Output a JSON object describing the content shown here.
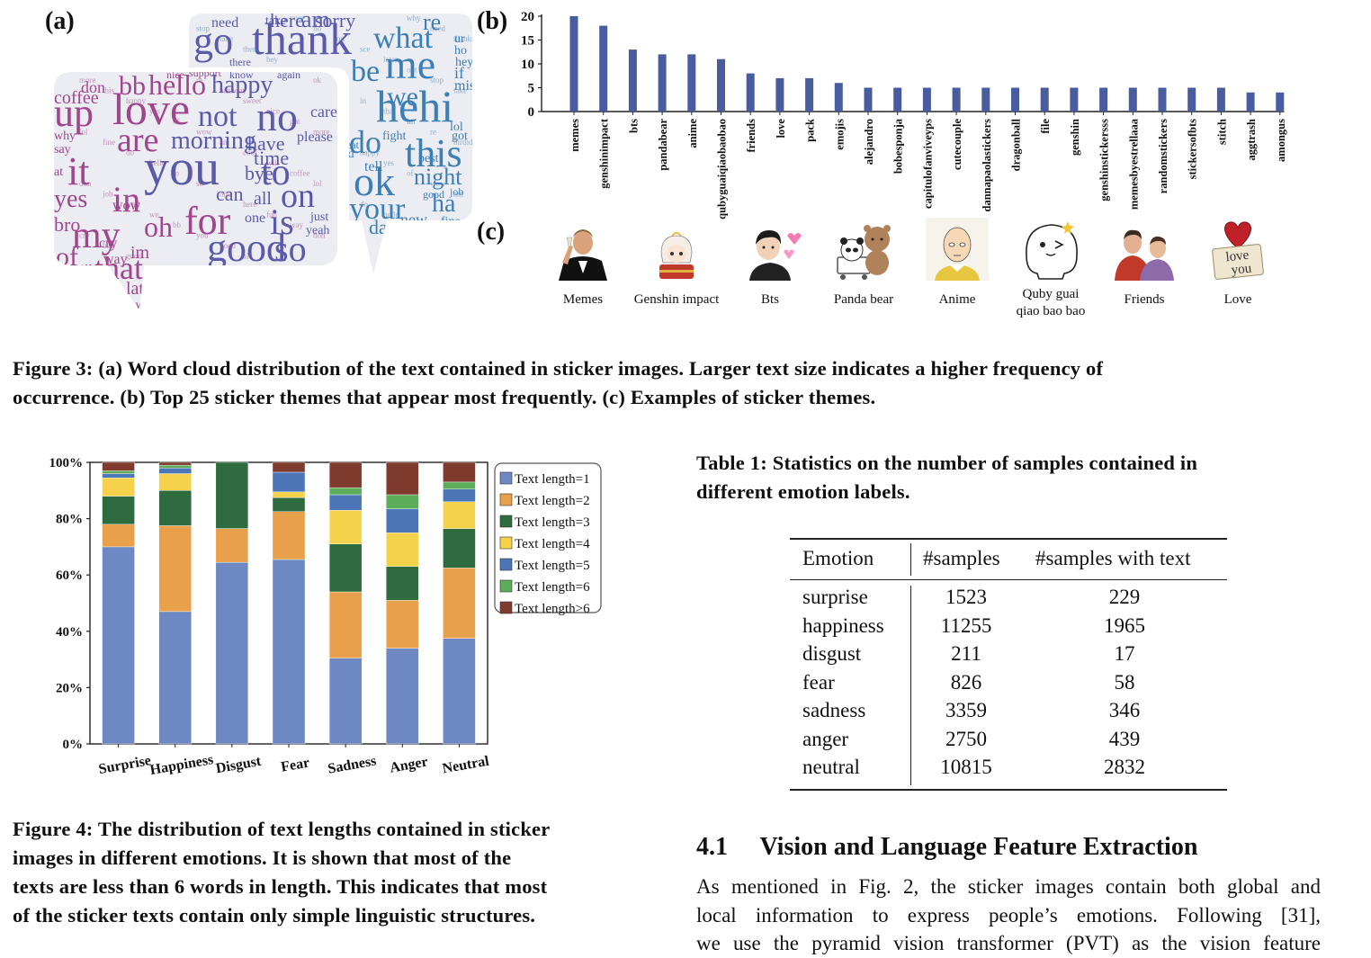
{
  "fig3": {
    "label_a": "(a)",
    "label_b": "(b)",
    "label_c": "(c)",
    "caption_line1": "Figure 3: (a) Word cloud distribution of the text contained in sticker images. Larger text size indicates a higher frequency of",
    "caption_line2": "occurrence. (b) Top 25 sticker themes that appear most frequently. (c) Examples of sticker themes."
  },
  "wordcloud": {
    "colors": {
      "purple": "#a0468c",
      "blue": "#3d7eb5",
      "indigo": "#5a5aa8",
      "background": "#ececf2"
    },
    "words": [
      "go",
      "thank",
      "what",
      "me",
      "hehi",
      "be",
      "we",
      "do",
      "this",
      "ok",
      "your",
      "night",
      "ha",
      "up",
      "love",
      "bb",
      "hello",
      "happy",
      "not",
      "no",
      "are",
      "morning",
      "have",
      "it",
      "you",
      "to",
      "yes",
      "in",
      "on",
      "for",
      "is",
      "my",
      "oh",
      "good",
      "so",
      "of",
      "that",
      "sce",
      "zzz",
      "bye",
      "time",
      "can",
      "all",
      "one",
      "wow",
      "im",
      "later",
      "like",
      "how",
      "day",
      "new",
      "sorry",
      "here",
      "am",
      "re",
      "out",
      "care",
      "please",
      "just",
      "yeah",
      "tell",
      "fun",
      "cool",
      "birthday",
      "stop",
      "why",
      "say",
      "at",
      "bro",
      "cry",
      "way",
      "will",
      "sweet",
      "take",
      "need",
      "support",
      "know",
      "again",
      "bad",
      "don",
      "coffee",
      "nice",
      "there",
      "thanks",
      "fight",
      "eat",
      "best",
      "good",
      "job",
      "lol",
      "got",
      "hey",
      "ho",
      "ur",
      "if",
      "miss",
      "sad",
      "well",
      "fine",
      "more"
    ]
  },
  "chart_b": {
    "type": "bar",
    "categories": [
      "memes",
      "genshinimpact",
      "bts",
      "pandabear",
      "anime",
      "qubyguaiqiaobaobao",
      "friends",
      "love",
      "pack",
      "emojis",
      "alejandro",
      "bobesponja",
      "capitulofanviveyps",
      "cutecouple",
      "dannapaolastickers",
      "dragonball",
      "file",
      "genshin",
      "genshinstickersss",
      "memesbyestrellaaa",
      "randomstickers",
      "stickersofbts",
      "stitch",
      "aggtrash",
      "amongus"
    ],
    "values": [
      20,
      18,
      13,
      12,
      12,
      11,
      8,
      7,
      7,
      6,
      5,
      5,
      5,
      5,
      5,
      5,
      5,
      5,
      5,
      5,
      5,
      5,
      5,
      4,
      4
    ],
    "yticks": [
      "20",
      "15",
      "10",
      "5",
      "0"
    ],
    "ylim": [
      0,
      20
    ],
    "color": "#4a5ca0"
  },
  "themes": [
    {
      "label": "Memes",
      "icon": "memes-sticker-icon"
    },
    {
      "label": "Genshin impact",
      "icon": "genshin-sticker-icon"
    },
    {
      "label": "Bts",
      "icon": "bts-sticker-icon"
    },
    {
      "label": "Panda bear",
      "icon": "panda-bear-sticker-icon"
    },
    {
      "label": "Anime",
      "icon": "anime-sticker-icon"
    },
    {
      "label": "Quby guai qiao bao bao",
      "line1": "Quby guai",
      "line2": "qiao bao bao",
      "icon": "quby-sticker-icon"
    },
    {
      "label": "Friends",
      "icon": "friends-sticker-icon"
    },
    {
      "label": "Love",
      "icon": "love-sticker-icon",
      "line1": "love",
      "line2": "you"
    }
  ],
  "chart_4": {
    "type": "bar",
    "stacked": true,
    "categories": [
      "Surprise",
      "Happiness",
      "Disgust",
      "Fear",
      "Sadness",
      "Anger",
      "Neutral"
    ],
    "yticks": [
      "100%",
      "80%",
      "60%",
      "40%",
      "20%",
      "0%"
    ],
    "ylim": [
      0,
      100
    ],
    "series": [
      {
        "name": "Text length=1",
        "color": "#6d88c2",
        "values": [
          70,
          47,
          64.5,
          65.5,
          30.5,
          34,
          37.5
        ]
      },
      {
        "name": "Text length=2",
        "color": "#e8a04a",
        "values": [
          8,
          30.5,
          12,
          17,
          23.5,
          17,
          25
        ]
      },
      {
        "name": "Text length=3",
        "color": "#2e6b3e",
        "values": [
          10,
          12.5,
          23.5,
          5,
          17,
          12,
          14
        ]
      },
      {
        "name": "Text length=4",
        "color": "#f6d24c",
        "values": [
          6.5,
          6,
          0,
          2,
          12,
          12,
          9.5
        ]
      },
      {
        "name": "Text length=5",
        "color": "#4c76b8",
        "values": [
          1.5,
          2,
          0,
          7,
          5.5,
          8.5,
          4.5
        ]
      },
      {
        "name": "Text length=6",
        "color": "#5cad5a",
        "values": [
          1,
          1,
          0,
          0,
          2.5,
          5,
          2.5
        ]
      },
      {
        "name": "Text length>6",
        "color": "#7f3c2e",
        "values": [
          3,
          1,
          0,
          3.5,
          9,
          11.5,
          7
        ]
      }
    ],
    "legend_position": "right"
  },
  "fig4": {
    "caption_lines": [
      "Figure 4: The distribution of text lengths contained in sticker",
      "images in different emotions. It is shown that most of the",
      "texts are less than 6 words in length. This indicates that most",
      "of the sticker texts contain only simple linguistic structures."
    ]
  },
  "table1": {
    "caption_lines": [
      "Table 1: Statistics on the number of samples contained in",
      "different emotion labels."
    ],
    "headers": [
      "Emotion",
      "#samples",
      "#samples with text"
    ],
    "rows": [
      [
        "surprise",
        "1523",
        "229"
      ],
      [
        "happiness",
        "11255",
        "1965"
      ],
      [
        "disgust",
        "211",
        "17"
      ],
      [
        "fear",
        "826",
        "58"
      ],
      [
        "sadness",
        "3359",
        "346"
      ],
      [
        "anger",
        "2750",
        "439"
      ],
      [
        "neutral",
        "10815",
        "2832"
      ]
    ]
  },
  "section": {
    "number": "4.1",
    "title": "Vision and Language Feature Extraction",
    "lines": [
      "As mentioned in Fig. 2, the sticker images contain both global and",
      "local information to express people’s emotions. Following [31],",
      "we use the pyramid vision transformer (PVT) as the vision feature"
    ]
  }
}
